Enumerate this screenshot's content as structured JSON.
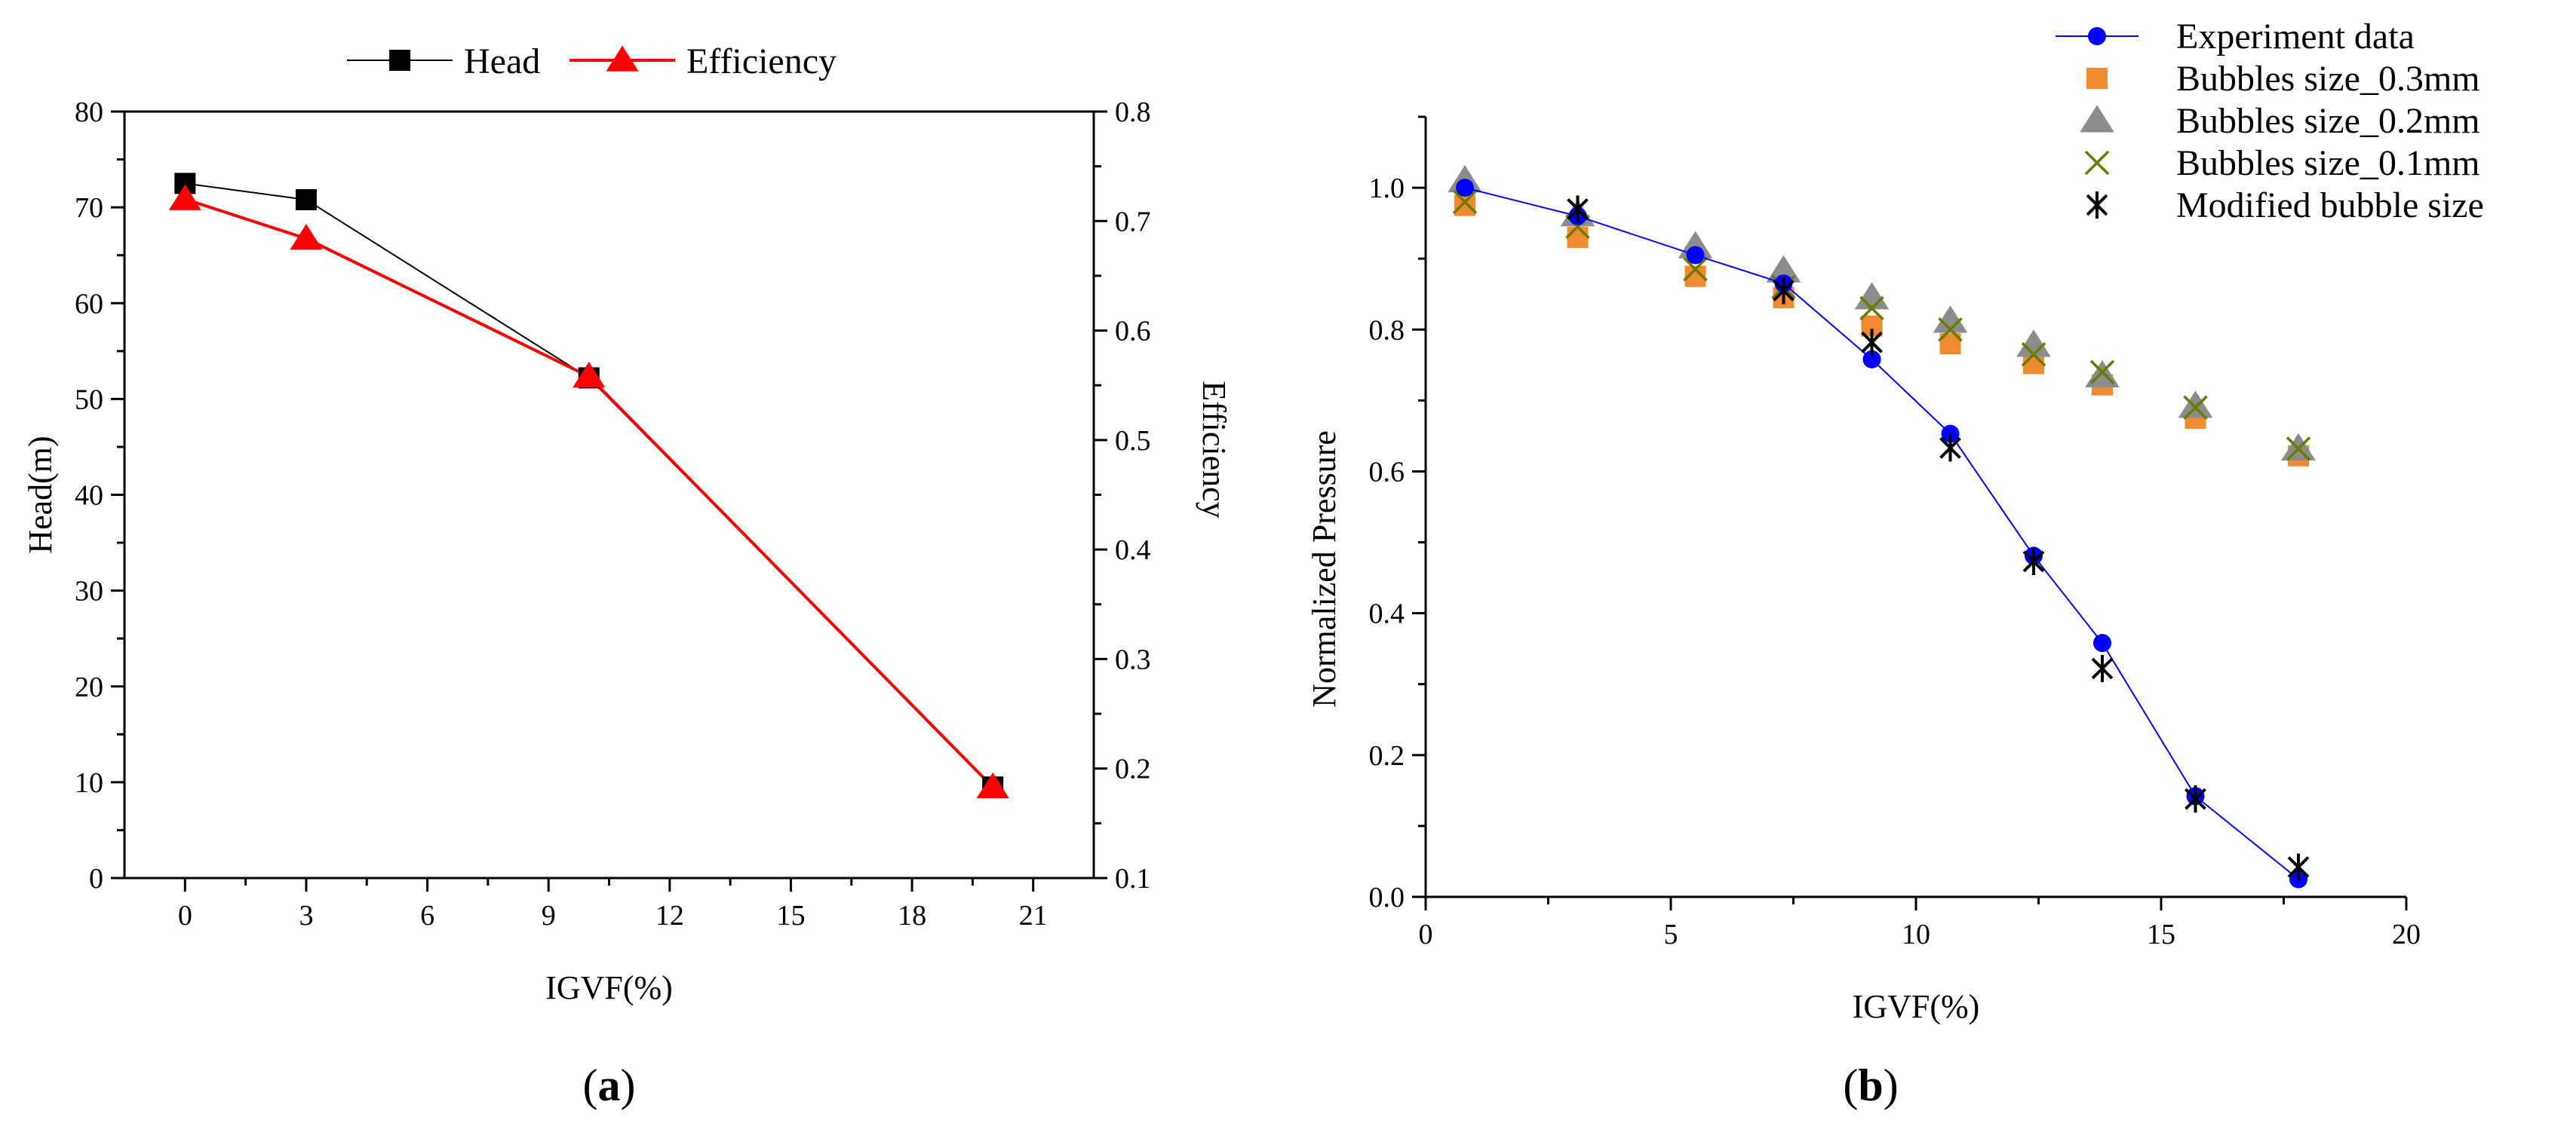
{
  "colors": {
    "head": "#000000",
    "efficiency": "#ff0000",
    "experiment": "#0000ff",
    "bubble_03": "#f28a30",
    "bubble_02": "#8c8c8c",
    "bubble_01": "#6b7a00",
    "modified": "#000000"
  },
  "chart_data": [
    {
      "type": "line",
      "panel": "a",
      "caption_open": "(",
      "caption_letter": "a",
      "caption_close": ")",
      "xlabel": "IGVF(%)",
      "ylabel_left": "Head(m)",
      "ylabel_right": "Efficiency",
      "xlim": [
        -1.5,
        22.5
      ],
      "ylim_left": [
        0,
        80
      ],
      "ylim_right": [
        0.1,
        0.8
      ],
      "xticks": [
        0,
        3,
        6,
        9,
        12,
        15,
        18,
        21
      ],
      "yticks_left": [
        0,
        10,
        20,
        30,
        40,
        50,
        60,
        70,
        80
      ],
      "yticks_right": [
        "0.1",
        "0.2",
        "0.3",
        "0.4",
        "0.5",
        "0.6",
        "0.7",
        "0.8"
      ],
      "legend_position": "top",
      "series": [
        {
          "name": "Head",
          "axis": "left",
          "marker": "square",
          "x": [
            0,
            3,
            10,
            20
          ],
          "values": [
            72.5,
            70.8,
            52.2,
            9.5
          ]
        },
        {
          "name": "Efficiency",
          "axis": "right",
          "marker": "triangle",
          "x": [
            0,
            3,
            10,
            20
          ],
          "values": [
            0.72,
            0.684,
            0.558,
            0.183
          ]
        }
      ]
    },
    {
      "type": "scatter",
      "panel": "b",
      "caption_open": "(",
      "caption_letter": "b",
      "caption_close": ")",
      "xlabel": "IGVF(%)",
      "ylabel": "Normalized Pressure",
      "xlim": [
        0,
        20
      ],
      "ylim": [
        0,
        1.1
      ],
      "xticks": [
        0,
        5,
        10,
        15,
        20
      ],
      "yticks": [
        "0.0",
        "0.2",
        "0.4",
        "0.6",
        "0.8",
        "1.0"
      ],
      "legend_position": "top-right",
      "series": [
        {
          "name": "Experiment data",
          "marker": "circle-line",
          "x": [
            0.8,
            3.1,
            5.5,
            7.3,
            9.1,
            10.7,
            12.4,
            13.8,
            15.7,
            17.8
          ],
          "values": [
            1.0,
            0.96,
            0.905,
            0.865,
            0.758,
            0.653,
            0.481,
            0.358,
            0.142,
            0.025
          ]
        },
        {
          "name": "Bubbles size_0.3mm",
          "marker": "square",
          "x": [
            0.8,
            3.1,
            5.5,
            7.3,
            9.1,
            10.7,
            12.4,
            13.8,
            15.7,
            17.8
          ],
          "values": [
            0.975,
            0.93,
            0.875,
            0.845,
            0.805,
            0.78,
            0.752,
            0.722,
            0.675,
            0.622
          ]
        },
        {
          "name": "Bubbles size_0.2mm",
          "marker": "triangle",
          "x": [
            0.8,
            3.1,
            5.5,
            7.3,
            9.1,
            10.7,
            12.4,
            13.8,
            15.7,
            17.8
          ],
          "values": [
            1.01,
            0.962,
            0.917,
            0.883,
            0.845,
            0.812,
            0.778,
            0.735,
            0.692,
            0.632
          ]
        },
        {
          "name": "Bubbles size_0.1mm",
          "marker": "x",
          "x": [
            0.8,
            3.1,
            5.5,
            7.3,
            9.1,
            10.7,
            12.4,
            13.8,
            15.7,
            17.8
          ],
          "values": [
            0.98,
            0.945,
            0.885,
            0.86,
            0.83,
            0.8,
            0.765,
            0.74,
            0.69,
            0.632
          ]
        },
        {
          "name": "Modified bubble size",
          "marker": "asterisk",
          "x": [
            3.1,
            7.3,
            9.1,
            10.7,
            12.4,
            13.8,
            15.7,
            17.8
          ],
          "values": [
            0.97,
            0.855,
            0.782,
            0.633,
            0.473,
            0.322,
            0.138,
            0.042
          ]
        }
      ]
    }
  ]
}
